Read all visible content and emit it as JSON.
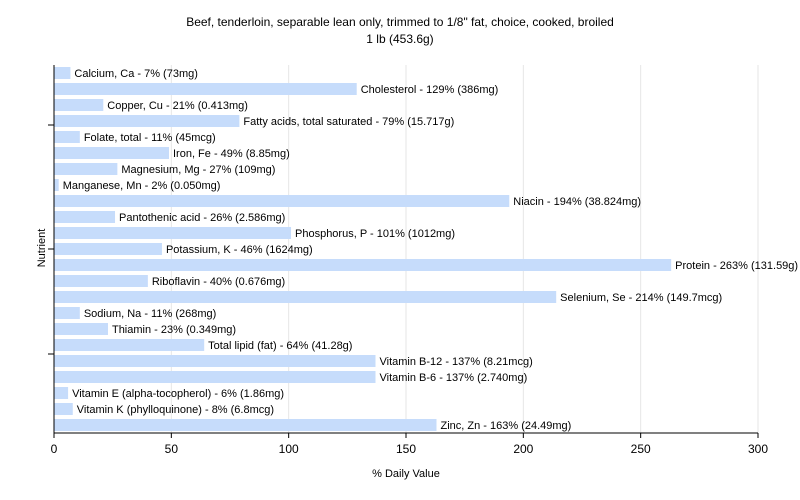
{
  "chart_data": {
    "type": "bar",
    "orientation": "horizontal",
    "title": "Beef, tenderloin, separable lean only, trimmed to 1/8\" fat, choice, cooked, broiled",
    "subtitle": "1 lb (453.6g)",
    "xlabel": "% Daily Value",
    "ylabel": "Nutrient",
    "xlim": [
      0,
      300
    ],
    "xticks": [
      0,
      50,
      100,
      150,
      200,
      250,
      300
    ],
    "grid": true,
    "bar_color": "#c6dcfb",
    "categories": [
      "Calcium, Ca - 7% (73mg)",
      "Cholesterol - 129% (386mg)",
      "Copper, Cu - 21% (0.413mg)",
      "Fatty acids, total saturated - 79% (15.717g)",
      "Folate, total - 11% (45mcg)",
      "Iron, Fe - 49% (8.85mg)",
      "Magnesium, Mg - 27% (109mg)",
      "Manganese, Mn - 2% (0.050mg)",
      "Niacin - 194% (38.824mg)",
      "Pantothenic acid - 26% (2.586mg)",
      "Phosphorus, P - 101% (1012mg)",
      "Potassium, K - 46% (1624mg)",
      "Protein - 263% (131.59g)",
      "Riboflavin - 40% (0.676mg)",
      "Selenium, Se - 214% (149.7mcg)",
      "Sodium, Na - 11% (268mg)",
      "Thiamin - 23% (0.349mg)",
      "Total lipid (fat) - 64% (41.28g)",
      "Vitamin B-12 - 137% (8.21mcg)",
      "Vitamin B-6 - 137% (2.740mg)",
      "Vitamin E (alpha-tocopherol) - 6% (1.86mg)",
      "Vitamin K (phylloquinone) - 8% (6.8mcg)",
      "Zinc, Zn - 163% (24.49mg)"
    ],
    "values": [
      7,
      129,
      21,
      79,
      11,
      49,
      27,
      2,
      194,
      26,
      101,
      46,
      263,
      40,
      214,
      11,
      23,
      64,
      137,
      137,
      6,
      8,
      163
    ]
  }
}
